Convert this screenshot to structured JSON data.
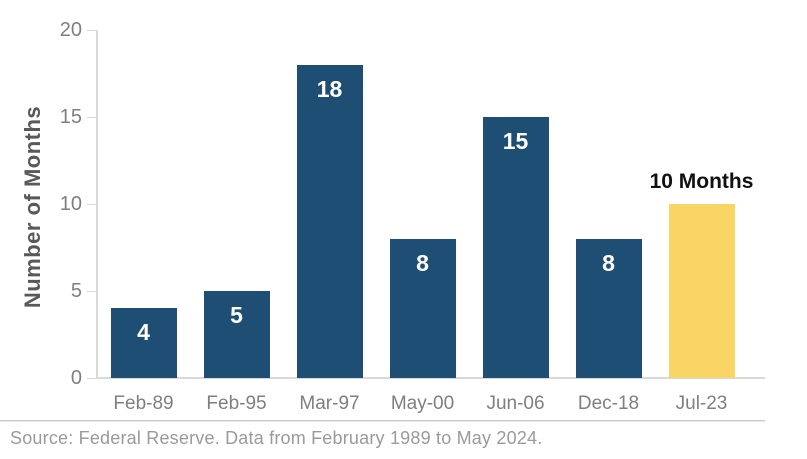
{
  "chart_data": {
    "type": "bar",
    "title": "",
    "xlabel": "",
    "ylabel": "Number of Months",
    "categories": [
      "Feb-89",
      "Feb-95",
      "Mar-97",
      "May-00",
      "Jun-06",
      "Dec-18",
      "Jul-23"
    ],
    "values": [
      4,
      5,
      18,
      8,
      15,
      8,
      10
    ],
    "bar_value_labels": [
      "4",
      "5",
      "18",
      "8",
      "15",
      "8",
      ""
    ],
    "highlight_index": 6,
    "annotation": {
      "text": "10 Months",
      "bar_index": 6
    },
    "ylim": [
      0,
      20
    ],
    "yticks": [
      0,
      5,
      10,
      15,
      20
    ],
    "grid": false,
    "legend": "none",
    "colors": {
      "bar": "#1f4e74",
      "highlight_bar": "#f8d564",
      "bar_label": "#ffffff",
      "annotation_text": "#111111",
      "axis_line": "#d9d9d9",
      "tick_label": "#7f7f7f",
      "axis_title": "#595959"
    }
  },
  "footer": {
    "source_text": "Source: Federal Reserve. Data from February 1989 to May 2024.",
    "divider_color": "#c9ced4",
    "text_color": "#9a9a9a"
  }
}
